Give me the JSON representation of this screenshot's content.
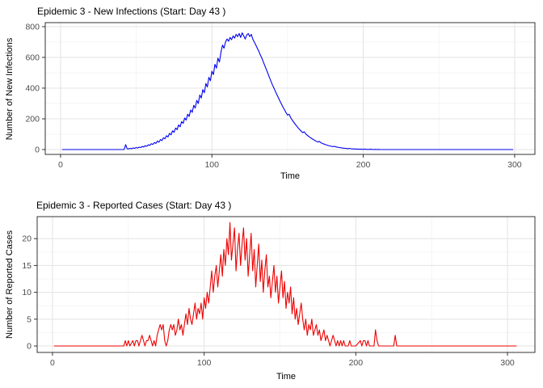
{
  "figure": {
    "background": "#ffffff",
    "border_color": "#333333",
    "grid_major_color": "#e3e3e3",
    "grid_minor_color": "#f1f1f1",
    "tick_label_color": "#4d4d4d"
  },
  "chart_data": [
    {
      "type": "line",
      "title": "Epidemic 3 - New Infections (Start: Day 43 )",
      "xlabel": "Time",
      "ylabel": "Number of New Infections",
      "line_color": "#0000EE",
      "legend": "none",
      "grid": "on",
      "xlim": [
        -10.1,
        313.4
      ],
      "ylim": [
        -31.6,
        826.3
      ],
      "x_ticks": [
        0,
        100,
        200,
        300
      ],
      "y_ticks": [
        0,
        200,
        400,
        600,
        800
      ],
      "x_minor": [
        50,
        150,
        250
      ],
      "y_minor": [
        100,
        300,
        500,
        700
      ],
      "points": [
        [
          1,
          0
        ],
        [
          10,
          0
        ],
        [
          20,
          0
        ],
        [
          30,
          0
        ],
        [
          40,
          0
        ],
        [
          42,
          0
        ],
        [
          43,
          32
        ],
        [
          44,
          6
        ],
        [
          45,
          4
        ],
        [
          46,
          8
        ],
        [
          47,
          6
        ],
        [
          48,
          10
        ],
        [
          49,
          8
        ],
        [
          50,
          13
        ],
        [
          51,
          10
        ],
        [
          52,
          16
        ],
        [
          53,
          13
        ],
        [
          54,
          20
        ],
        [
          55,
          17
        ],
        [
          56,
          25
        ],
        [
          57,
          21
        ],
        [
          58,
          31
        ],
        [
          59,
          27
        ],
        [
          60,
          38
        ],
        [
          61,
          33
        ],
        [
          62,
          46
        ],
        [
          63,
          40
        ],
        [
          64,
          55
        ],
        [
          65,
          48
        ],
        [
          66,
          65
        ],
        [
          67,
          58
        ],
        [
          68,
          77
        ],
        [
          69,
          70
        ],
        [
          70,
          90
        ],
        [
          71,
          82
        ],
        [
          72,
          105
        ],
        [
          73,
          96
        ],
        [
          74,
          122
        ],
        [
          75,
          112
        ],
        [
          76,
          140
        ],
        [
          77,
          130
        ],
        [
          78,
          160
        ],
        [
          79,
          148
        ],
        [
          80,
          182
        ],
        [
          81,
          170
        ],
        [
          82,
          205
        ],
        [
          83,
          192
        ],
        [
          84,
          230
        ],
        [
          85,
          215
        ],
        [
          86,
          258
        ],
        [
          87,
          242
        ],
        [
          88,
          288
        ],
        [
          89,
          270
        ],
        [
          90,
          320
        ],
        [
          91,
          300
        ],
        [
          92,
          355
        ],
        [
          93,
          335
        ],
        [
          94,
          390
        ],
        [
          95,
          370
        ],
        [
          96,
          430
        ],
        [
          97,
          408
        ],
        [
          98,
          470
        ],
        [
          99,
          448
        ],
        [
          100,
          510
        ],
        [
          101,
          488
        ],
        [
          102,
          555
        ],
        [
          103,
          530
        ],
        [
          104,
          595
        ],
        [
          105,
          570
        ],
        [
          106,
          635
        ],
        [
          107,
          680
        ],
        [
          108,
          660
        ],
        [
          109,
          700
        ],
        [
          110,
          720
        ],
        [
          111,
          705
        ],
        [
          112,
          730
        ],
        [
          113,
          715
        ],
        [
          114,
          740
        ],
        [
          115,
          725
        ],
        [
          116,
          750
        ],
        [
          117,
          735
        ],
        [
          118,
          755
        ],
        [
          119,
          730
        ],
        [
          120,
          760
        ],
        [
          121,
          740
        ],
        [
          122,
          720
        ],
        [
          123,
          745
        ],
        [
          124,
          755
        ],
        [
          125,
          735
        ],
        [
          126,
          750
        ],
        [
          127,
          720
        ],
        [
          128,
          700
        ],
        [
          129,
          680
        ],
        [
          130,
          660
        ],
        [
          131,
          640
        ],
        [
          132,
          615
        ],
        [
          133,
          595
        ],
        [
          134,
          570
        ],
        [
          135,
          545
        ],
        [
          136,
          520
        ],
        [
          137,
          495
        ],
        [
          138,
          470
        ],
        [
          139,
          445
        ],
        [
          140,
          420
        ],
        [
          141,
          400
        ],
        [
          142,
          378
        ],
        [
          143,
          356
        ],
        [
          144,
          335
        ],
        [
          145,
          315
        ],
        [
          146,
          295
        ],
        [
          147,
          276
        ],
        [
          148,
          258
        ],
        [
          149,
          240
        ],
        [
          150,
          224
        ],
        [
          151,
          230
        ],
        [
          152,
          208
        ],
        [
          153,
          193
        ],
        [
          154,
          179
        ],
        [
          155,
          166
        ],
        [
          156,
          153
        ],
        [
          157,
          141
        ],
        [
          158,
          130
        ],
        [
          159,
          120
        ],
        [
          160,
          110
        ],
        [
          161,
          116
        ],
        [
          162,
          101
        ],
        [
          163,
          93
        ],
        [
          164,
          85
        ],
        [
          165,
          78
        ],
        [
          166,
          71
        ],
        [
          167,
          65
        ],
        [
          168,
          59
        ],
        [
          169,
          54
        ],
        [
          170,
          49
        ],
        [
          171,
          53
        ],
        [
          172,
          44
        ],
        [
          173,
          40
        ],
        [
          174,
          36
        ],
        [
          175,
          32
        ],
        [
          176,
          29
        ],
        [
          177,
          26
        ],
        [
          178,
          23
        ],
        [
          179,
          21
        ],
        [
          180,
          19
        ],
        [
          181,
          21
        ],
        [
          182,
          17
        ],
        [
          183,
          15
        ],
        [
          184,
          13
        ],
        [
          185,
          12
        ],
        [
          186,
          10
        ],
        [
          187,
          9
        ],
        [
          188,
          8
        ],
        [
          189,
          7
        ],
        [
          190,
          6
        ],
        [
          191,
          8
        ],
        [
          192,
          5
        ],
        [
          193,
          4
        ],
        [
          194,
          4
        ],
        [
          195,
          3
        ],
        [
          196,
          3
        ],
        [
          197,
          2
        ],
        [
          198,
          2
        ],
        [
          199,
          2
        ],
        [
          200,
          1
        ],
        [
          201,
          3
        ],
        [
          202,
          1
        ],
        [
          203,
          1
        ],
        [
          204,
          1
        ],
        [
          205,
          2
        ],
        [
          206,
          1
        ],
        [
          207,
          0
        ],
        [
          208,
          1
        ],
        [
          209,
          0
        ],
        [
          210,
          1
        ],
        [
          211,
          0
        ],
        [
          215,
          0
        ],
        [
          220,
          0
        ],
        [
          230,
          0
        ],
        [
          240,
          0
        ],
        [
          250,
          0
        ],
        [
          260,
          0
        ],
        [
          270,
          0
        ],
        [
          280,
          0
        ],
        [
          290,
          0
        ],
        [
          299,
          0
        ]
      ]
    },
    {
      "type": "line",
      "title": "Epidemic 3 - Reported Cases (Start: Day 43 )",
      "xlabel": "Time",
      "ylabel": "Number of Reported Cases",
      "line_color": "#EE0000",
      "legend": "none",
      "grid": "on",
      "xlim": [
        -10.1,
        318.1
      ],
      "ylim": [
        -1.2,
        24.1
      ],
      "x_ticks": [
        0,
        100,
        200,
        300
      ],
      "y_ticks": [
        0,
        5,
        10,
        15,
        20
      ],
      "x_minor": [
        50,
        150,
        250
      ],
      "y_minor": [
        2.5,
        7.5,
        12.5,
        17.5
      ],
      "points": [
        [
          1,
          0
        ],
        [
          10,
          0
        ],
        [
          20,
          0
        ],
        [
          30,
          0
        ],
        [
          40,
          0
        ],
        [
          47,
          0
        ],
        [
          48,
          1
        ],
        [
          49,
          0
        ],
        [
          50,
          1
        ],
        [
          51,
          0
        ],
        [
          53,
          1
        ],
        [
          54,
          0
        ],
        [
          55,
          1
        ],
        [
          56,
          1
        ],
        [
          57,
          0
        ],
        [
          58,
          1
        ],
        [
          59,
          2
        ],
        [
          60,
          1
        ],
        [
          61,
          0
        ],
        [
          62,
          1
        ],
        [
          63,
          1
        ],
        [
          64,
          2
        ],
        [
          65,
          1
        ],
        [
          66,
          0
        ],
        [
          67,
          1
        ],
        [
          68,
          0
        ],
        [
          69,
          2
        ],
        [
          70,
          3
        ],
        [
          71,
          4
        ],
        [
          72,
          3
        ],
        [
          73,
          4
        ],
        [
          74,
          1
        ],
        [
          75,
          0
        ],
        [
          76,
          1
        ],
        [
          77,
          3
        ],
        [
          78,
          4
        ],
        [
          79,
          3
        ],
        [
          80,
          4
        ],
        [
          81,
          2
        ],
        [
          82,
          3
        ],
        [
          83,
          5
        ],
        [
          84,
          3
        ],
        [
          85,
          4
        ],
        [
          86,
          2
        ],
        [
          87,
          4
        ],
        [
          88,
          6
        ],
        [
          89,
          4
        ],
        [
          90,
          7
        ],
        [
          91,
          5
        ],
        [
          92,
          4
        ],
        [
          93,
          6
        ],
        [
          94,
          8
        ],
        [
          95,
          5
        ],
        [
          96,
          7
        ],
        [
          97,
          6
        ],
        [
          98,
          8
        ],
        [
          99,
          5
        ],
        [
          100,
          9
        ],
        [
          101,
          7
        ],
        [
          102,
          10
        ],
        [
          103,
          8
        ],
        [
          104,
          11
        ],
        [
          105,
          14
        ],
        [
          106,
          10
        ],
        [
          107,
          13
        ],
        [
          108,
          15
        ],
        [
          109,
          11
        ],
        [
          110,
          14
        ],
        [
          111,
          17
        ],
        [
          112,
          13
        ],
        [
          113,
          18
        ],
        [
          114,
          15
        ],
        [
          115,
          20
        ],
        [
          116,
          17
        ],
        [
          117,
          23
        ],
        [
          118,
          16
        ],
        [
          119,
          19
        ],
        [
          120,
          22
        ],
        [
          121,
          14
        ],
        [
          122,
          18
        ],
        [
          123,
          21
        ],
        [
          124,
          15
        ],
        [
          125,
          19
        ],
        [
          126,
          22
        ],
        [
          127,
          16
        ],
        [
          128,
          20
        ],
        [
          129,
          13
        ],
        [
          130,
          17
        ],
        [
          131,
          21
        ],
        [
          132,
          14
        ],
        [
          133,
          18
        ],
        [
          134,
          11
        ],
        [
          135,
          15
        ],
        [
          136,
          19
        ],
        [
          137,
          12
        ],
        [
          138,
          16
        ],
        [
          139,
          10
        ],
        [
          140,
          14
        ],
        [
          141,
          17
        ],
        [
          142,
          11
        ],
        [
          143,
          13
        ],
        [
          144,
          9
        ],
        [
          145,
          12
        ],
        [
          146,
          15
        ],
        [
          147,
          10
        ],
        [
          148,
          13
        ],
        [
          149,
          8
        ],
        [
          150,
          11
        ],
        [
          151,
          14
        ],
        [
          152,
          9
        ],
        [
          153,
          12
        ],
        [
          154,
          7
        ],
        [
          155,
          10
        ],
        [
          156,
          8
        ],
        [
          157,
          11
        ],
        [
          158,
          6
        ],
        [
          159,
          9
        ],
        [
          160,
          5
        ],
        [
          161,
          7
        ],
        [
          162,
          4
        ],
        [
          163,
          6
        ],
        [
          164,
          8
        ],
        [
          165,
          5
        ],
        [
          166,
          3
        ],
        [
          167,
          5
        ],
        [
          168,
          2
        ],
        [
          169,
          4
        ],
        [
          170,
          3
        ],
        [
          171,
          5
        ],
        [
          172,
          2
        ],
        [
          173,
          3
        ],
        [
          174,
          4
        ],
        [
          175,
          2
        ],
        [
          176,
          3
        ],
        [
          177,
          1
        ],
        [
          178,
          2
        ],
        [
          179,
          3
        ],
        [
          180,
          1
        ],
        [
          181,
          2
        ],
        [
          182,
          1
        ],
        [
          183,
          0
        ],
        [
          184,
          1
        ],
        [
          185,
          2
        ],
        [
          186,
          1
        ],
        [
          187,
          0
        ],
        [
          188,
          1
        ],
        [
          189,
          0
        ],
        [
          190,
          1
        ],
        [
          191,
          0
        ],
        [
          192,
          1
        ],
        [
          193,
          0
        ],
        [
          195,
          0
        ],
        [
          196,
          1
        ],
        [
          197,
          0
        ],
        [
          200,
          0
        ],
        [
          203,
          1
        ],
        [
          204,
          0
        ],
        [
          205,
          1
        ],
        [
          206,
          1
        ],
        [
          207,
          0
        ],
        [
          208,
          1
        ],
        [
          209,
          0
        ],
        [
          212,
          0
        ],
        [
          213,
          3
        ],
        [
          214,
          1
        ],
        [
          215,
          0
        ],
        [
          220,
          0
        ],
        [
          225,
          0
        ],
        [
          226,
          2
        ],
        [
          227,
          0
        ],
        [
          230,
          0
        ],
        [
          240,
          0
        ],
        [
          250,
          0
        ],
        [
          260,
          0
        ],
        [
          270,
          0
        ],
        [
          280,
          0
        ],
        [
          290,
          0
        ],
        [
          300,
          0
        ],
        [
          306,
          0
        ]
      ]
    }
  ]
}
